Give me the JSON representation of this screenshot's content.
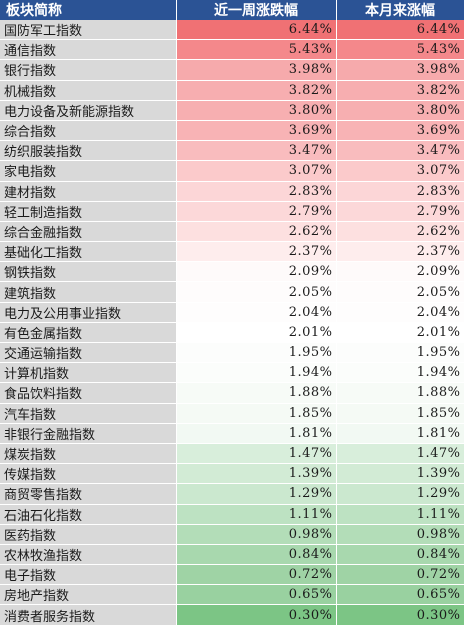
{
  "headers": [
    "板块简称",
    "近一周涨跌幅",
    "本月来涨幅"
  ],
  "rows": [
    {
      "name": "国防军工指数",
      "week": "6.44%",
      "month": "6.44%",
      "color": "#f07174"
    },
    {
      "name": "通信指数",
      "week": "5.43%",
      "month": "5.43%",
      "color": "#f4888b"
    },
    {
      "name": "银行指数",
      "week": "3.98%",
      "month": "3.98%",
      "color": "#f6aaac"
    },
    {
      "name": "机械指数",
      "week": "3.82%",
      "month": "3.82%",
      "color": "#f7aeb0"
    },
    {
      "name": "电力设备及新能源指数",
      "week": "3.80%",
      "month": "3.80%",
      "color": "#f7afb1"
    },
    {
      "name": "综合指数",
      "week": "3.69%",
      "month": "3.69%",
      "color": "#f8b3b5"
    },
    {
      "name": "纺织服装指数",
      "week": "3.47%",
      "month": "3.47%",
      "color": "#f9bcbe"
    },
    {
      "name": "家电指数",
      "week": "3.07%",
      "month": "3.07%",
      "color": "#fbcacb"
    },
    {
      "name": "建材指数",
      "week": "2.83%",
      "month": "2.83%",
      "color": "#fcd6d7"
    },
    {
      "name": "轻工制造指数",
      "week": "2.79%",
      "month": "2.79%",
      "color": "#fcd8d9"
    },
    {
      "name": "综合金融指数",
      "week": "2.62%",
      "month": "2.62%",
      "color": "#fde0e0"
    },
    {
      "name": "基础化工指数",
      "week": "2.37%",
      "month": "2.37%",
      "color": "#feeded"
    },
    {
      "name": "钢铁指数",
      "week": "2.09%",
      "month": "2.09%",
      "color": "#fefafa"
    },
    {
      "name": "建筑指数",
      "week": "2.05%",
      "month": "2.05%",
      "color": "#fefcfc"
    },
    {
      "name": "电力及公用事业指数",
      "week": "2.04%",
      "month": "2.04%",
      "color": "#fefdfd"
    },
    {
      "name": "有色金属指数",
      "week": "2.01%",
      "month": "2.01%",
      "color": "#ffffff"
    },
    {
      "name": "交通运输指数",
      "week": "1.95%",
      "month": "1.95%",
      "color": "#fcfdfc"
    },
    {
      "name": "计算机指数",
      "week": "1.94%",
      "month": "1.94%",
      "color": "#fbfdfb"
    },
    {
      "name": "食品饮料指数",
      "week": "1.88%",
      "month": "1.88%",
      "color": "#f7fbf7"
    },
    {
      "name": "汽车指数",
      "week": "1.85%",
      "month": "1.85%",
      "color": "#f5faf5"
    },
    {
      "name": "非银行金融指数",
      "week": "1.81%",
      "month": "1.81%",
      "color": "#f2f9f3"
    },
    {
      "name": "煤炭指数",
      "week": "1.47%",
      "month": "1.47%",
      "color": "#d8eedb"
    },
    {
      "name": "传媒指数",
      "week": "1.39%",
      "month": "1.39%",
      "color": "#d2ebd5"
    },
    {
      "name": "商贸零售指数",
      "week": "1.29%",
      "month": "1.29%",
      "color": "#cbe8cf"
    },
    {
      "name": "石油石化指数",
      "week": "1.11%",
      "month": "1.11%",
      "color": "#bde2c2"
    },
    {
      "name": "医药指数",
      "week": "0.98%",
      "month": "0.98%",
      "color": "#b3ddb8"
    },
    {
      "name": "农林牧渔指数",
      "week": "0.84%",
      "month": "0.84%",
      "color": "#a8d8ae"
    },
    {
      "name": "电子指数",
      "week": "0.72%",
      "month": "0.72%",
      "color": "#9fd3a5"
    },
    {
      "name": "房地产指数",
      "week": "0.65%",
      "month": "0.65%",
      "color": "#99d1a0"
    },
    {
      "name": "消费者服务指数",
      "week": "0.30%",
      "month": "0.30%",
      "color": "#7cc585"
    }
  ]
}
